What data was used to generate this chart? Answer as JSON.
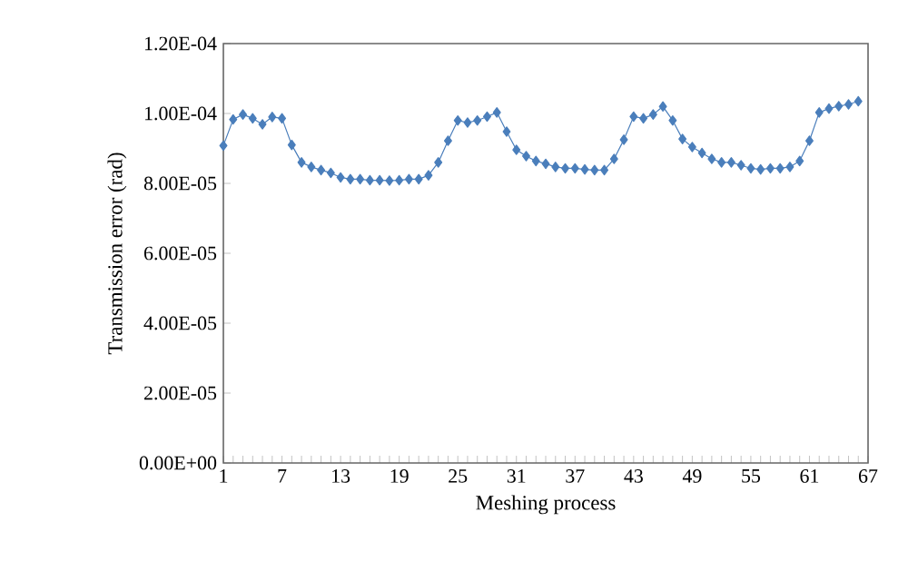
{
  "chart_data": {
    "type": "line",
    "xlabel": "Meshing process",
    "ylabel": "Transmission error (rad)",
    "x": [
      1,
      2,
      3,
      4,
      5,
      6,
      7,
      8,
      9,
      10,
      11,
      12,
      13,
      14,
      15,
      16,
      17,
      18,
      19,
      20,
      21,
      22,
      23,
      24,
      25,
      26,
      27,
      28,
      29,
      30,
      31,
      32,
      33,
      34,
      35,
      36,
      37,
      38,
      39,
      40,
      41,
      42,
      43,
      44,
      45,
      46,
      47,
      48,
      49,
      50,
      51,
      52,
      53,
      54,
      55,
      56,
      57,
      58,
      59,
      60,
      61,
      62,
      63,
      64,
      65,
      66
    ],
    "series": [
      {
        "color": "#4a7ebb",
        "values": [
          9.08e-05,
          9.83e-05,
          9.97e-05,
          9.86e-05,
          9.69e-05,
          9.9e-05,
          9.86e-05,
          9.1e-05,
          8.6e-05,
          8.47e-05,
          8.38e-05,
          8.3e-05,
          8.17e-05,
          8.12e-05,
          8.12e-05,
          8.09e-05,
          8.09e-05,
          8.08e-05,
          8.09e-05,
          8.12e-05,
          8.12e-05,
          8.23e-05,
          8.6e-05,
          9.22e-05,
          9.8e-05,
          9.74e-05,
          9.8e-05,
          9.91e-05,
          0.0001003,
          9.48e-05,
          8.96e-05,
          8.78e-05,
          8.64e-05,
          8.56e-05,
          8.47e-05,
          8.43e-05,
          8.43e-05,
          8.4e-05,
          8.38e-05,
          8.38e-05,
          8.7e-05,
          9.25e-05,
          9.91e-05,
          9.86e-05,
          9.97e-05,
          0.000102,
          9.8e-05,
          9.27e-05,
          9.04e-05,
          8.87e-05,
          8.7e-05,
          8.6e-05,
          8.6e-05,
          8.52e-05,
          8.43e-05,
          8.4e-05,
          8.43e-05,
          8.43e-05,
          8.47e-05,
          8.64e-05,
          9.22e-05,
          0.0001003,
          0.0001014,
          0.0001021,
          0.0001026,
          0.0001035
        ]
      }
    ],
    "xlim": [
      1,
      67
    ],
    "xticks": [
      1,
      {
        "value": 2,
        "label": null
      },
      {
        "value": 3,
        "label": null
      },
      {
        "value": 4,
        "label": null
      },
      {
        "value": 5,
        "label": null
      },
      {
        "value": 6,
        "label": null
      },
      7,
      {
        "value": 8,
        "label": null
      },
      {
        "value": 9,
        "label": null
      },
      {
        "value": 10,
        "label": null
      },
      {
        "value": 11,
        "label": null
      },
      {
        "value": 12,
        "label": null
      },
      13,
      {
        "value": 14,
        "label": null
      },
      {
        "value": 15,
        "label": null
      },
      {
        "value": 16,
        "label": null
      },
      {
        "value": 17,
        "label": null
      },
      {
        "value": 18,
        "label": null
      },
      19,
      {
        "value": 20,
        "label": null
      },
      {
        "value": 21,
        "label": null
      },
      {
        "value": 22,
        "label": null
      },
      {
        "value": 23,
        "label": null
      },
      {
        "value": 24,
        "label": null
      },
      25,
      {
        "value": 26,
        "label": null
      },
      {
        "value": 27,
        "label": null
      },
      {
        "value": 28,
        "label": null
      },
      {
        "value": 29,
        "label": null
      },
      {
        "value": 30,
        "label": null
      },
      31,
      {
        "value": 32,
        "label": null
      },
      {
        "value": 33,
        "label": null
      },
      {
        "value": 34,
        "label": null
      },
      {
        "value": 35,
        "label": null
      },
      {
        "value": 36,
        "label": null
      },
      37,
      {
        "value": 38,
        "label": null
      },
      {
        "value": 39,
        "label": null
      },
      {
        "value": 40,
        "label": null
      },
      {
        "value": 41,
        "label": null
      },
      {
        "value": 42,
        "label": null
      },
      43,
      {
        "value": 44,
        "label": null
      },
      {
        "value": 45,
        "label": null
      },
      {
        "value": 46,
        "label": null
      },
      {
        "value": 47,
        "label": null
      },
      {
        "value": 48,
        "label": null
      },
      49,
      {
        "value": 50,
        "label": null
      },
      {
        "value": 51,
        "label": null
      },
      {
        "value": 52,
        "label": null
      },
      {
        "value": 53,
        "label": null
      },
      {
        "value": 54,
        "label": null
      },
      55,
      {
        "value": 56,
        "label": null
      },
      {
        "value": 57,
        "label": null
      },
      {
        "value": 58,
        "label": null
      },
      {
        "value": 59,
        "label": null
      },
      {
        "value": 60,
        "label": null
      },
      61,
      {
        "value": 62,
        "label": null
      },
      {
        "value": 63,
        "label": null
      },
      {
        "value": 64,
        "label": null
      },
      {
        "value": 65,
        "label": null
      },
      {
        "value": 66,
        "label": null
      },
      67
    ],
    "ylim": [
      0,
      0.00012
    ],
    "yticks": [
      {
        "value": 0,
        "label": "0.00E+00"
      },
      {
        "value": 2e-05,
        "label": "2.00E-05"
      },
      {
        "value": 4e-05,
        "label": "4.00E-05"
      },
      {
        "value": 6e-05,
        "label": "6.00E-05"
      },
      {
        "value": 8e-05,
        "label": "8.00E-05"
      },
      {
        "value": 0.0001,
        "label": "1.00E-04"
      },
      {
        "value": 0.00012,
        "label": "1.20E-04"
      }
    ],
    "marker": "diamond",
    "line_style": "solid"
  }
}
